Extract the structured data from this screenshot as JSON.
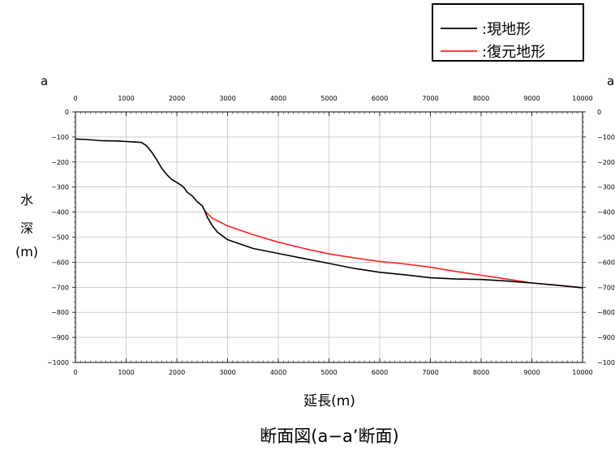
{
  "chart_data": {
    "type": "line",
    "title": "断面図(a−a’断面)",
    "xlabel": "延長(m)",
    "ylabel": [
      "水",
      "深",
      "(m)"
    ],
    "section_label_left": "a",
    "section_label_right": "a",
    "xlim": [
      0,
      10000
    ],
    "ylim": [
      -1000,
      0
    ],
    "x_ticks": [
      0,
      1000,
      2000,
      3000,
      4000,
      5000,
      6000,
      7000,
      8000,
      9000,
      10000
    ],
    "y_ticks": [
      0,
      -100,
      -200,
      -300,
      -400,
      -500,
      -600,
      -700,
      -800,
      -900,
      -1000
    ],
    "grid": true,
    "legend_placement": "top-right",
    "series": [
      {
        "name": ":現地形",
        "color": "#000000",
        "x": [
          0,
          200,
          500,
          800,
          1000,
          1150,
          1300,
          1400,
          1500,
          1600,
          1700,
          1800,
          1900,
          2000,
          2100,
          2150,
          2200,
          2300,
          2400,
          2500,
          2550,
          2600,
          2700,
          2800,
          3000,
          3500,
          4000,
          4500,
          5000,
          5500,
          6000,
          6500,
          7000,
          7500,
          8000,
          8500,
          9000,
          9500,
          10000
        ],
        "y": [
          -108,
          -110,
          -115,
          -116,
          -118,
          -120,
          -122,
          -135,
          -160,
          -190,
          -225,
          -250,
          -270,
          -282,
          -295,
          -305,
          -320,
          -335,
          -358,
          -375,
          -395,
          -420,
          -455,
          -480,
          -510,
          -545,
          -565,
          -585,
          -605,
          -625,
          -640,
          -650,
          -662,
          -667,
          -669,
          -675,
          -683,
          -692,
          -702
        ]
      },
      {
        "name": ":復元地形",
        "color": "#ff2020",
        "x": [
          2550,
          2700,
          3000,
          3500,
          4000,
          4500,
          5000,
          5500,
          6000,
          6500,
          7000,
          7500,
          8000,
          8500,
          9000,
          9500,
          10000
        ],
        "y": [
          -395,
          -425,
          -455,
          -490,
          -520,
          -545,
          -567,
          -583,
          -597,
          -607,
          -620,
          -637,
          -652,
          -667,
          -683,
          -692,
          -702
        ]
      }
    ]
  }
}
